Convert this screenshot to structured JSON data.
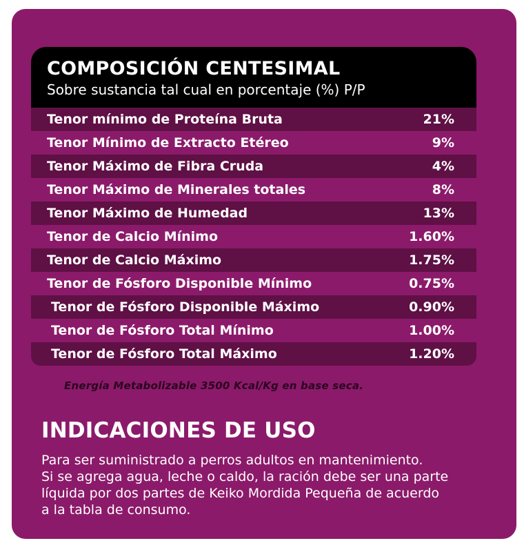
{
  "composicion": {
    "title": "COMPOSICIÓN CENTESIMAL",
    "subtitle": "Sobre sustancia tal cual en porcentaje (%) P/P",
    "rows": [
      {
        "label": "Tenor mínimo de Proteína Bruta",
        "value": "21%"
      },
      {
        "label": "Tenor Mínimo de Extracto Etéreo",
        "value": "9%"
      },
      {
        "label": "Tenor Máximo de Fibra Cruda",
        "value": "4%"
      },
      {
        "label": "Tenor Máximo de Minerales totales",
        "value": "8%"
      },
      {
        "label": "Tenor Máximo de Humedad",
        "value": "13%"
      },
      {
        "label": "Tenor de Calcio Mínimo",
        "value": "1.60%"
      },
      {
        "label": "Tenor de Calcio Máximo",
        "value": "1.75%"
      },
      {
        "label": "Tenor de Fósforo Disponible Mínimo",
        "value": "0.75%"
      },
      {
        "label": "Tenor de Fósforo Disponible Máximo",
        "value": "0.90%"
      },
      {
        "label": "Tenor de Fósforo Total Mínimo",
        "value": "1.00%"
      },
      {
        "label": "Tenor de Fósforo Total Máximo",
        "value": "1.20%"
      }
    ],
    "energy_note": "Energía Metabolizable 3500 Kcal/Kg en base seca."
  },
  "indicaciones": {
    "title": "INDICACIONES DE USO",
    "lines": [
      "Para ser suministrado a perros adultos en mantenimiento.",
      "Si se agrega agua, leche o caldo, la ración debe ser una parte",
      "líquida por dos partes de Keiko Mordida Pequeña de acuerdo",
      "a la tabla de consumo."
    ]
  },
  "colors": {
    "panel": "#8c1a6a",
    "row_dark": "#5f1045",
    "header": "#000000"
  }
}
